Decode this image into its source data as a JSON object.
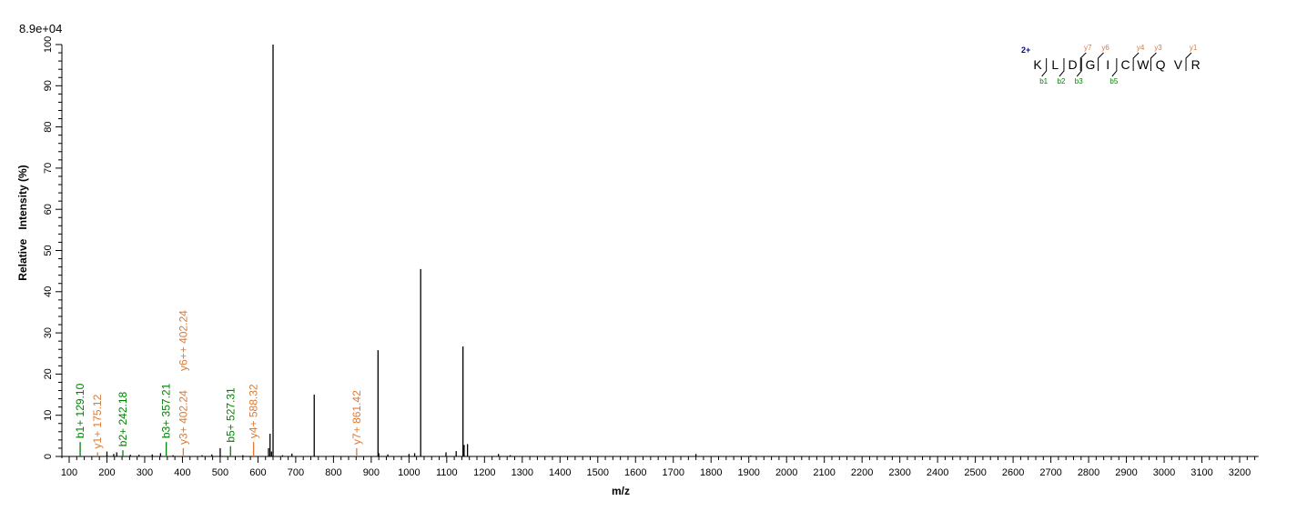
{
  "chart_data": {
    "type": "bar",
    "subtype": "mass-spectrum",
    "scale_label": "8.9e+04",
    "xlabel": "m/z",
    "ylabel": "Relative   Intensity (%)",
    "xlim": [
      85,
      3250
    ],
    "ylim": [
      0,
      100
    ],
    "xticks": [
      100,
      200,
      300,
      400,
      500,
      600,
      700,
      800,
      900,
      1000,
      1100,
      1200,
      1300,
      1400,
      1500,
      1600,
      1700,
      1800,
      1900,
      2000,
      2100,
      2200,
      2300,
      2400,
      2500,
      2600,
      2700,
      2800,
      2900,
      3000,
      3100,
      3200
    ],
    "yticks": [
      0,
      10,
      20,
      30,
      40,
      50,
      60,
      70,
      80,
      90,
      100
    ],
    "colors": {
      "b": "#008000",
      "y": "#E07830",
      "peak": "#000000",
      "charge": "#0000C0"
    },
    "peaks": [
      [
        200,
        1.2
      ],
      [
        218,
        0.6
      ],
      [
        226,
        1
      ],
      [
        262,
        0.4
      ],
      [
        285,
        0.4
      ],
      [
        320,
        0.5
      ],
      [
        342,
        0.8
      ],
      [
        375,
        0.3
      ],
      [
        452,
        0.3
      ],
      [
        478,
        0.5
      ],
      [
        500,
        2.0
      ],
      [
        560,
        0.3
      ],
      [
        632,
        5.5
      ],
      [
        628,
        2
      ],
      [
        636,
        1.2
      ],
      [
        640,
        100
      ],
      [
        665,
        0.3
      ],
      [
        690,
        0.7
      ],
      [
        749,
        15
      ],
      [
        800,
        0.2
      ],
      [
        918,
        25.8
      ],
      [
        920,
        0.8
      ],
      [
        944,
        0.5
      ],
      [
        1000,
        0.6
      ],
      [
        1015,
        0.8
      ],
      [
        1031,
        45.5
      ],
      [
        1098,
        1
      ],
      [
        1125,
        1.3
      ],
      [
        1143,
        26.7
      ],
      [
        1146,
        2.8
      ],
      [
        1155,
        3
      ],
      [
        1237,
        0.6
      ],
      [
        1268,
        0.3
      ],
      [
        1760,
        0.6
      ],
      [
        1905,
        0.2
      ]
    ],
    "annotations": [
      {
        "text": "b1+ 129.10",
        "mz": 129.1,
        "intensity": 3.5,
        "type": "b"
      },
      {
        "text": "y1+ 175.12",
        "mz": 175.12,
        "intensity": 1,
        "type": "y"
      },
      {
        "text": "b2+ 242.18",
        "mz": 242.18,
        "intensity": 1.5,
        "type": "b"
      },
      {
        "text": "b3+ 357.21",
        "mz": 357.21,
        "intensity": 3.5,
        "type": "b"
      },
      {
        "text": "y3+ 402.24",
        "mz": 402.24,
        "intensity": 2,
        "type": "y"
      },
      {
        "text": "y6++ 402.24",
        "mz": 402.24,
        "intensity": 2,
        "type": "y",
        "stacked": true
      },
      {
        "text": "b5+ 527.31",
        "mz": 527.31,
        "intensity": 2.5,
        "type": "b"
      },
      {
        "text": "y4+ 588.32",
        "mz": 588.32,
        "intensity": 3.5,
        "type": "y"
      },
      {
        "text": "y7+ 861.42",
        "mz": 861.42,
        "intensity": 2,
        "type": "y"
      }
    ]
  },
  "sequence": {
    "charge": "2+",
    "residues": [
      "K",
      "L",
      "D",
      "G",
      "I",
      "C",
      "W",
      "Q",
      "V",
      "R"
    ],
    "y_ions": [
      {
        "label": "y7",
        "after": 2
      },
      {
        "label": "y6",
        "after": 3
      },
      {
        "label": "y4",
        "after": 5
      },
      {
        "label": "y3",
        "after": 6
      },
      {
        "label": "y1",
        "after": 8
      }
    ],
    "b_ions": [
      {
        "label": "b1",
        "after": 0
      },
      {
        "label": "b2",
        "after": 1
      },
      {
        "label": "b3",
        "after": 2
      },
      {
        "label": "b5",
        "after": 4
      }
    ]
  }
}
